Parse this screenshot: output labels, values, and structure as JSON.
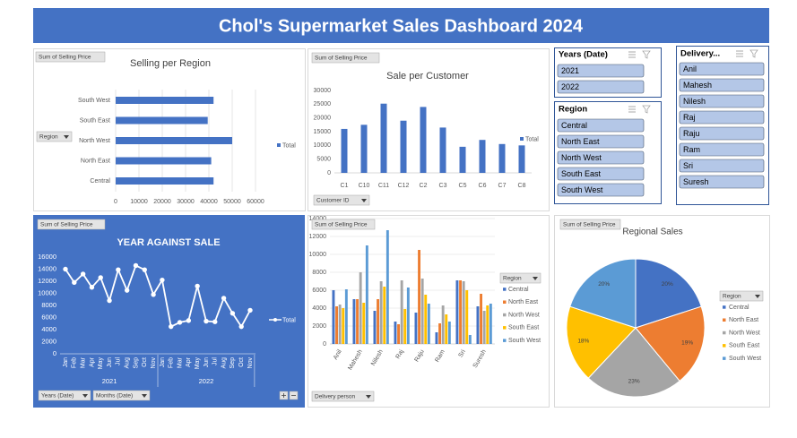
{
  "header": {
    "title": "Chol's Supermarket Sales Dashboard 2024"
  },
  "chart_data": [
    {
      "type": "barh",
      "title": "Selling per Region",
      "buttons": [
        "Sum of Selling Price",
        "Region"
      ],
      "categories": [
        "Central",
        "North East",
        "North West",
        "South East",
        "South West"
      ],
      "series": [
        {
          "name": "Total",
          "color": "#4472c4",
          "values": [
            42000,
            41000,
            50000,
            39500,
            42000
          ]
        }
      ],
      "xlim": [
        0,
        60000
      ],
      "xticks": [
        0,
        10000,
        20000,
        30000,
        40000,
        50000,
        60000
      ],
      "grid": true
    },
    {
      "type": "bar",
      "title": "Sale per Customer",
      "buttons": [
        "Sum of Selling Price",
        "Customer ID"
      ],
      "categories": [
        "C1",
        "C10",
        "C11",
        "C12",
        "C2",
        "C3",
        "C5",
        "C6",
        "C7",
        "C8"
      ],
      "series": [
        {
          "name": "Total",
          "color": "#4472c4",
          "values": [
            16000,
            17500,
            25200,
            19000,
            24000,
            16500,
            9500,
            12000,
            10500,
            10000
          ]
        }
      ],
      "ylim": [
        0,
        30000
      ],
      "yticks": [
        0,
        5000,
        10000,
        15000,
        20000,
        25000,
        30000
      ],
      "grid": false
    },
    {
      "type": "line",
      "title": "YEAR AGAINST SALE",
      "buttons": [
        "Sum of Selling Price",
        "Years (Date)",
        "Months (Date)"
      ],
      "year_groups": [
        {
          "label": "2021",
          "months": [
            "Jan",
            "Feb",
            "Mar",
            "Apr",
            "May",
            "Jun",
            "Jul",
            "Aug",
            "Sep",
            "Oct",
            "Nov"
          ]
        },
        {
          "label": "2022",
          "months": [
            "Jan",
            "Feb",
            "Mar",
            "Apr",
            "May",
            "Jun",
            "Jul",
            "Aug",
            "Sep",
            "Oct",
            "Nov"
          ]
        }
      ],
      "series": [
        {
          "name": "Total",
          "color": "#ffffff",
          "values": [
            14000,
            11800,
            13200,
            11000,
            12600,
            8800,
            13900,
            10500,
            14600,
            13900,
            9800,
            12200,
            4500,
            5200,
            5500,
            11200,
            5400,
            5300,
            9200,
            6700,
            4500,
            7200
          ]
        }
      ],
      "ylim": [
        0,
        16000
      ],
      "yticks": [
        0,
        2000,
        4000,
        6000,
        8000,
        10000,
        12000,
        14000,
        16000
      ],
      "grid": false
    },
    {
      "type": "bar",
      "buttons": [
        "Sum of Selling Price",
        "Delivery person"
      ],
      "legend_title": "Region",
      "categories": [
        "Anil",
        "Mahesh",
        "Nilesh",
        "Raj",
        "Raju",
        "Ram",
        "Sri",
        "Suresh"
      ],
      "series": [
        {
          "name": "Central",
          "color": "#4472c4",
          "values": [
            6000,
            5000,
            3700,
            2500,
            3500,
            1300,
            7100,
            4200
          ]
        },
        {
          "name": "North East",
          "color": "#ed7d31",
          "values": [
            4200,
            5000,
            5000,
            2200,
            10500,
            2300,
            7100,
            5600
          ]
        },
        {
          "name": "North West",
          "color": "#a5a5a5",
          "values": [
            4400,
            8000,
            7000,
            7100,
            7300,
            4300,
            7000,
            3700
          ]
        },
        {
          "name": "South East",
          "color": "#ffc000",
          "values": [
            4000,
            4600,
            6400,
            3900,
            5500,
            3300,
            6000,
            4300
          ]
        },
        {
          "name": "South West",
          "color": "#5b9bd5",
          "values": [
            6100,
            11000,
            12700,
            6300,
            4500,
            2500,
            1000,
            4500
          ]
        }
      ],
      "ylim": [
        0,
        14000
      ],
      "yticks": [
        0,
        2000,
        4000,
        6000,
        8000,
        10000,
        12000,
        14000
      ],
      "grid": true
    },
    {
      "type": "pie",
      "title": "Regional Sales",
      "buttons": [
        "Sum of Selling Price"
      ],
      "legend_title": "Region",
      "categories": [
        "Central",
        "North East",
        "North West",
        "South East",
        "South West"
      ],
      "values": [
        20,
        19,
        23,
        18,
        20
      ],
      "value_labels": [
        "20%",
        "19%",
        "23%",
        "18%",
        "20%"
      ],
      "colors": [
        "#4472c4",
        "#ed7d31",
        "#a5a5a5",
        "#ffc000",
        "#5b9bd5"
      ]
    }
  ],
  "slicers": [
    {
      "title": "Years (Date)",
      "items": [
        "2021",
        "2022"
      ]
    },
    {
      "title": "Region",
      "items": [
        "Central",
        "North East",
        "North West",
        "South East",
        "South West"
      ]
    },
    {
      "title": "Delivery...",
      "items": [
        "Anil",
        "Mahesh",
        "Nilesh",
        "Raj",
        "Raju",
        "Ram",
        "Sri",
        "Suresh"
      ]
    }
  ]
}
